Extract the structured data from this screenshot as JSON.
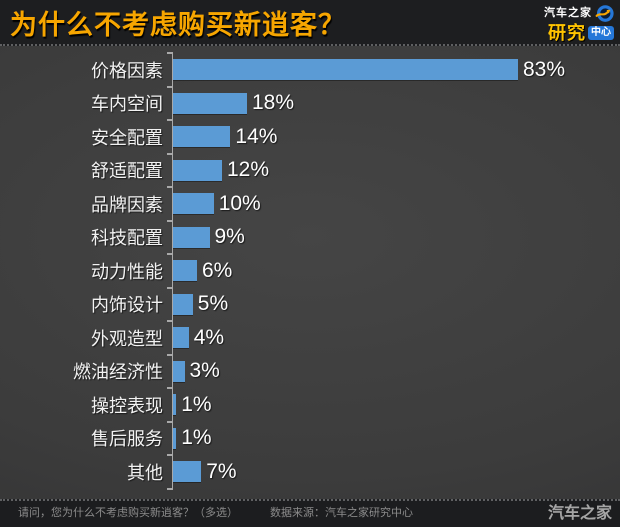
{
  "header": {
    "title": "为什么不考虑购买新逍客？",
    "logo": {
      "brand": "汽车之家",
      "line2_left": "研究",
      "line2_badge": "中心",
      "accent_blue": "#2577d8",
      "accent_yellow": "#ffc400"
    }
  },
  "chart_data": {
    "type": "bar",
    "orientation": "horizontal",
    "title": "为什么不考虑购买新逍客？",
    "categories": [
      "价格因素",
      "车内空间",
      "安全配置",
      "舒适配置",
      "品牌因素",
      "科技配置",
      "动力性能",
      "内饰设计",
      "外观造型",
      "燃油经济性",
      "操控表现",
      "售后服务",
      "其他"
    ],
    "values": [
      83,
      18,
      14,
      12,
      10,
      9,
      6,
      5,
      4,
      3,
      1,
      1,
      7
    ],
    "value_suffix": "%",
    "xlabel": "",
    "ylabel": "",
    "xlim": [
      0,
      100
    ],
    "grid": false,
    "legend": false,
    "bar_color": "#5b9bd5",
    "value_label_color": "#ffffff",
    "category_label_color": "#f2f2f2",
    "background_color": "#3c3c3c"
  },
  "footer": {
    "question": "请问，您为什么不考虑购买新逍客？（多选）",
    "source": "数据来源：汽车之家研究中心",
    "brand": "汽车之家"
  }
}
